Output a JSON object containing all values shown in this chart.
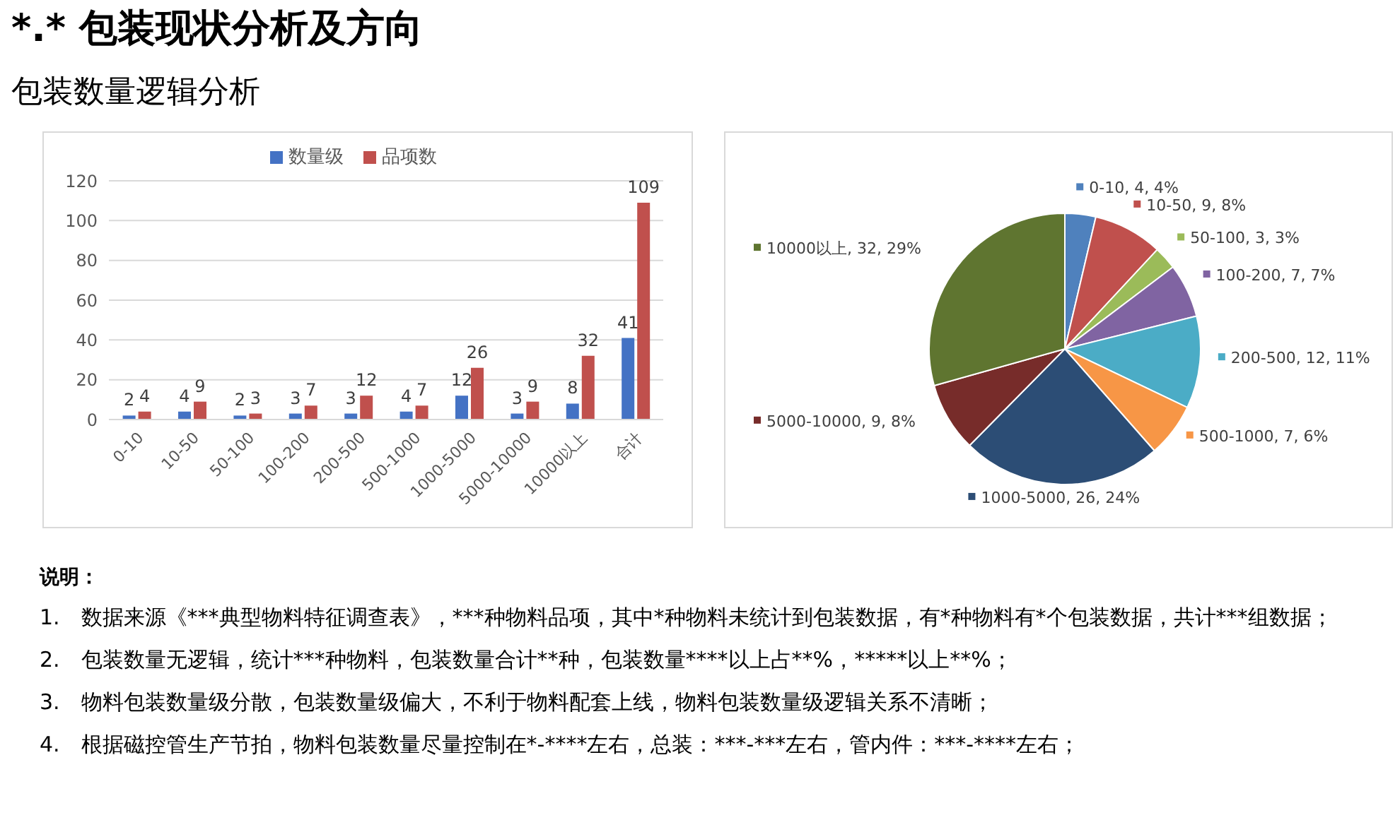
{
  "chart_data": [
    {
      "type": "bar",
      "title": "*.* 包装现状分析及方向",
      "subtitle": "包装数量逻辑分析",
      "categories": [
        "0-10",
        "10-50",
        "50-100",
        "100-200",
        "200-500",
        "500-1000",
        "1000-5000",
        "5000-10000",
        "10000以上",
        "合计"
      ],
      "series": [
        {
          "name": "数量级",
          "color": "#4472c4",
          "values": [
            2,
            4,
            2,
            3,
            3,
            4,
            12,
            3,
            8,
            41
          ]
        },
        {
          "name": "品项数",
          "color": "#c0504d",
          "values": [
            4,
            9,
            3,
            7,
            12,
            7,
            26,
            9,
            32,
            109
          ]
        }
      ],
      "ylim": [
        0,
        120
      ],
      "yticks": [
        0,
        20,
        40,
        60,
        80,
        100,
        120
      ],
      "grid": "y",
      "legend": "top",
      "data_labels": true,
      "annotations": [
        "说明：",
        "1.　数据来源《***典型物料特征调查表》，***种物料品项，其中*种物料未统计到包装数据，有*种物料有*个包装数据，共计***组数据；",
        "2.　包装数量无逻辑，统计***种物料，包装数量合计**种，包装数量****以上占**%，*****以上**%；",
        "3.　物料包装数量级分散，包装数量级偏大，不利于物料配套上线，物料包装数量级逻辑关系不清晰；",
        "4.　根据磁控管生产节拍，物料包装数量尽量控制在*-****左右，总装：***-***左右，管内件：***-****左右；"
      ]
    },
    {
      "type": "pie",
      "categories": [
        "0-10",
        "10-50",
        "50-100",
        "100-200",
        "200-500",
        "500-1000",
        "1000-5000",
        "5000-10000",
        "10000以上"
      ],
      "values": [
        4,
        9,
        3,
        7,
        12,
        7,
        26,
        9,
        32
      ],
      "colors": [
        "#4f81bd",
        "#c0504d",
        "#9bbb59",
        "#8064a2",
        "#4bacc6",
        "#f79646",
        "#2c4d75",
        "#772c2a",
        "#5f7530"
      ],
      "value_labels": [
        "4, 4%",
        "9, 8%",
        "3, 3%",
        "7, 7%",
        "12, 11%",
        "7, 6%",
        "26, 24%",
        "9, 8%",
        "32, 29%"
      ],
      "legend": "right"
    }
  ]
}
